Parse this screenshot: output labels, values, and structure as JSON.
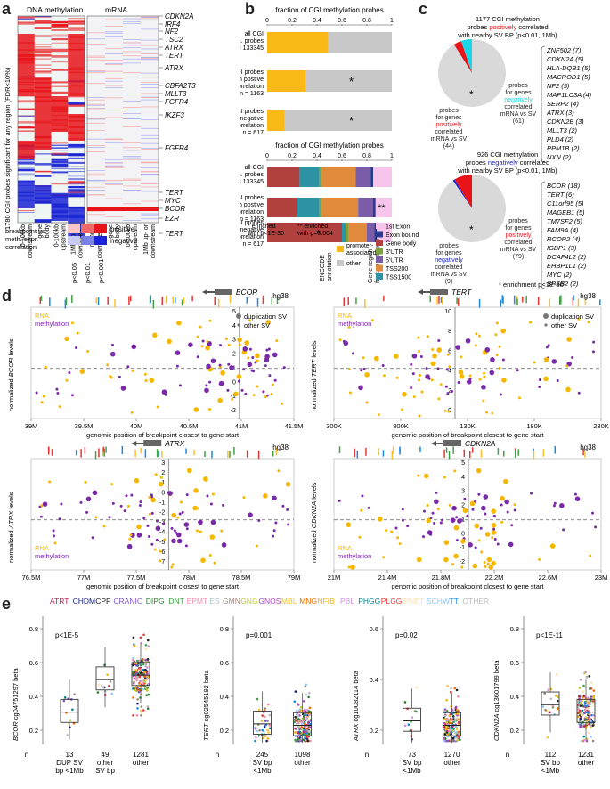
{
  "panels": {
    "a": {
      "label": "a",
      "ylabel": "1780 CGI probes significant for any region (FDR<10%)",
      "dna_title": "DNA methylation",
      "mrna_title": "mRNA",
      "col_labels": [
        "0-100kb downstream",
        "gene body",
        "0-100kb upstream",
        "1Mb up- or downstream"
      ],
      "genes": [
        "CDKN2A",
        "IRF4",
        "NF2",
        "TSC2",
        "ATRX",
        "TERT",
        "ATRX",
        "CBFA2T3",
        "MLLT3",
        "FGFR4",
        "IKZF3",
        "FGFR4",
        "TERT",
        "MYC",
        "BCOR",
        "EZR",
        "TERT"
      ],
      "legend_title": "breakpoint vs meth./expr. correlation",
      "legend_pos": "positive",
      "legend_neg": "negative",
      "legend_p": [
        "p<0.05",
        "p<0.01",
        "p<0.001"
      ],
      "colors": {
        "pos": "#e8141a",
        "neg": "#1a24d6",
        "pos_light": "#f4a0a0",
        "neg_light": "#a0a6ee"
      }
    },
    "b": {
      "label": "b",
      "top_title": "fraction of CGI methylation probes",
      "bottom_title": "fraction of CGI methylation probes",
      "ticks": [
        "0",
        "0.2",
        "0.4",
        "0.6",
        "0.8",
        "1"
      ],
      "rows": [
        {
          "l1": "all CGI",
          "l2": "meth. probes",
          "n": "n = 133345"
        },
        {
          "l1": "CGI probes",
          "l2": "with postive",
          "l3": "SV correlation",
          "n": "n = 1163"
        },
        {
          "l1": "CGI probes",
          "l2": "with negative",
          "l3": "SV correlation",
          "n": "n = 617"
        }
      ],
      "rows2": [
        {
          "l1": "all CGI",
          "l2": "meth. probes",
          "n": "n = 133345"
        },
        {
          "l1": "CGI probes",
          "l2": "with postive",
          "l3": "SV correlation",
          "n": "n = 1163"
        },
        {
          "l1": "CGI probes",
          "l2": "with negative",
          "l3": "SV correlation",
          "n": "n = 617"
        }
      ],
      "star1": "*",
      "star2": "**",
      "enriched1": "* enriched with p<1E-30",
      "enriched2": "** enriched with p=0.004",
      "encode_label": "ENCODE annotation",
      "encode_items": [
        "promoter-associated",
        "other"
      ],
      "generegion_label": "Gene region feature category",
      "gene_items": [
        "1st Exon",
        "Exon boundary",
        "Gene body",
        "3'UTR",
        "5'UTR",
        "TSS200",
        "TSS1500"
      ],
      "colors": {
        "promoter": "#fbb917",
        "other": "#c8c8c8",
        "exon1": "#f7c4ec",
        "exonb": "#2b3a8f",
        "body": "#b0413e",
        "utr3": "#7fa23a",
        "utr5": "#7b5ca8",
        "tss200": "#e08a3c",
        "tss1500": "#2f93a6"
      }
    },
    "c": {
      "label": "c",
      "top": {
        "t1": "1177 CGI methylation",
        "t2a": "probes ",
        "t2b": "positively",
        "t2c": " correlated",
        "t3": "with nearby SV BP (p<0.01, 1Mb)",
        "left": [
          "probes",
          "for genes",
          "positively",
          "correlated",
          "mRNA vs SV",
          "(44)"
        ],
        "right": [
          "probes",
          "for genes",
          "negatively",
          "correlated",
          "mRNA vs SV",
          "(61)"
        ],
        "genes": [
          "ZNF502 (7)",
          "CDKN2A (5)",
          "HLA-DQB1 (5)",
          "MACROD1 (5)",
          "NF2 (5)",
          "MAP1LC3A (4)",
          "SERP2 (4)",
          "ATRX (3)",
          "CDKN2B (3)",
          "MLLT3 (2)",
          "PLD4 (2)",
          "PPM1B (2)",
          "NXN (2)"
        ]
      },
      "bottom": {
        "t1": "926 CGI methylation",
        "t2a": "probes ",
        "t2b": "negatively",
        "t2c": " correlated",
        "t3": "with nearby SV BP (p<0.01, 1Mb)",
        "left": [
          "probes",
          "for genes",
          "negatively",
          "correlated",
          "mRNA vs SV",
          "(9)"
        ],
        "right": [
          "probes",
          "for genes",
          "positively",
          "correlated",
          "mRNA vs SV",
          "(79)"
        ],
        "genes": [
          "BCOR (18)",
          "TERT (6)",
          "C11orf95 (5)",
          "MAGEB1 (5)",
          "TM7SF2 (5)",
          "FAM9A (4)",
          "RCOR2 (4)",
          "IGBP1 (3)",
          "DCAF4L2 (2)",
          "EHBP1L1 (2)",
          "MYC (2)",
          "SPSB2 (2)"
        ]
      },
      "footnote": "* enrichment p<1E-30",
      "colors": {
        "red": "#e8141a",
        "cyan": "#19d7e6",
        "blue": "#1a24d6",
        "grey": "#d9d9d9"
      }
    },
    "d": {
      "label": "d",
      "xlabel": "genomic position of breakpoint closest to gene start",
      "build": "hg38",
      "rna": "RNA",
      "methylation": "methylation",
      "dup": "duplication SV",
      "other": "other SV",
      "plots": [
        {
          "gene": "BCOR",
          "ylabel": "normalized BCOR levels",
          "xticks": [
            "39M",
            "39.5M",
            "40M",
            "40.5M",
            "41M",
            "41.5M"
          ],
          "yticks": [
            "5",
            "4",
            "3",
            "2",
            "1",
            "0",
            "-1",
            "-2"
          ]
        },
        {
          "gene": "TERT",
          "ylabel": "normalized TERT levels",
          "xticks": [
            "300K",
            "800K",
            "130K",
            "180K",
            "230K"
          ],
          "yticks": [
            "10",
            "8",
            "6",
            "4",
            "2",
            "0"
          ]
        },
        {
          "gene": "ATRX",
          "ylabel": "normalized ATRX levels",
          "xticks": [
            "76.5M",
            "77M",
            "77.5M",
            "78M",
            "78.5M",
            "79M"
          ],
          "yticks": [
            "3",
            "2",
            "1",
            "0",
            "-1",
            "-2",
            "-3",
            "-4",
            "-5",
            "-6",
            "-7"
          ]
        },
        {
          "gene": "CDKN2A",
          "ylabel": "normalized CDKN2A levels",
          "xticks": [
            "21M",
            "21.4M",
            "21.8M",
            "22.2M",
            "22.6M",
            "23M"
          ],
          "yticks": [
            "5",
            "4",
            "3",
            "2",
            "1",
            "0",
            "-1",
            "-2"
          ]
        }
      ],
      "colors": {
        "rna": "#f5b800",
        "meth": "#7a2aa8"
      }
    },
    "e": {
      "label": "e",
      "types": [
        {
          "name": "ATRT",
          "color": "#c2185b"
        },
        {
          "name": "CHDM",
          "color": "#1a237e"
        },
        {
          "name": "CPP",
          "color": "#222222"
        },
        {
          "name": "CRANIO",
          "color": "#7e57c2"
        },
        {
          "name": "DIPG",
          "color": "#2e7d32"
        },
        {
          "name": "DNT",
          "color": "#43a047"
        },
        {
          "name": "EPMT",
          "color": "#f48fb1"
        },
        {
          "name": "ES",
          "color": "#b0bec5"
        },
        {
          "name": "GMN",
          "color": "#a1887f"
        },
        {
          "name": "GNG",
          "color": "#c0ca33"
        },
        {
          "name": "GNOS",
          "color": "#ab47bc"
        },
        {
          "name": "MBL",
          "color": "#fbc02d"
        },
        {
          "name": "MNG",
          "color": "#ef6c00"
        },
        {
          "name": "NFIB",
          "color": "#ffb300"
        },
        {
          "name": "PBL",
          "color": "#ce93d8"
        },
        {
          "name": "PHGG",
          "color": "#00838f"
        },
        {
          "name": "PLGG",
          "color": "#e53935"
        },
        {
          "name": "PNET",
          "color": "#ffe0b2"
        },
        {
          "name": "SCHW",
          "color": "#90caf9"
        },
        {
          "name": "TT",
          "color": "#1e88e5"
        },
        {
          "name": "OTHER",
          "color": "#bdbdbd"
        }
      ],
      "plots": [
        {
          "ylabel": "BCOR cg04751297 beta",
          "gene": "BCOR",
          "probe": " cg04751297 beta",
          "p": "p<1E-5",
          "yticks": [
            "0.8",
            "0.6",
            "0.4",
            "0.2"
          ],
          "groups": [
            {
              "n": "13",
              "l1": "DUP SV",
              "l2": "bp <1Mb"
            },
            {
              "n": "49",
              "l1": "other",
              "l2": "SV bp"
            },
            {
              "n": "1281",
              "l1": "other",
              "l2": ""
            }
          ]
        },
        {
          "ylabel": "TERT cg02545192 beta",
          "gene": "TERT",
          "probe": " cg02545192 beta",
          "p": "p=0.001",
          "yticks": [
            "0.8",
            "0.6",
            "0.4",
            "0.2"
          ],
          "groups": [
            {
              "n": "245",
              "l1": "SV bp",
              "l2": "<1Mb"
            },
            {
              "n": "1098",
              "l1": "other",
              "l2": ""
            }
          ]
        },
        {
          "ylabel": "ATRX cg10082114 beta",
          "gene": "ATRX",
          "probe": " cg10082114 beta",
          "p": "p=0.02",
          "yticks": [
            "0.6",
            "0.4",
            "0.2"
          ],
          "groups": [
            {
              "n": "73",
              "l1": "SV bp",
              "l2": "<1Mb"
            },
            {
              "n": "1270",
              "l1": "other",
              "l2": ""
            }
          ]
        },
        {
          "ylabel": "CDKN2A cg13601799 beta",
          "gene": "CDKN2A",
          "probe": " cg13601799 beta",
          "p": "p<1E-11",
          "yticks": [
            "0.8",
            "0.6",
            "0.4",
            "0.2"
          ],
          "groups": [
            {
              "n": "112",
              "l1": "SV bp",
              "l2": "<1Mb"
            },
            {
              "n": "1231",
              "l1": "other",
              "l2": ""
            }
          ]
        }
      ],
      "n_label": "n"
    }
  },
  "chart_data": [
    {
      "type": "bar",
      "panel": "b-top",
      "categories": [
        "all CGI meth. probes",
        "CGI probes with postive SV correlation",
        "CGI probes with negative SV correlation"
      ],
      "series": [
        {
          "name": "promoter-associated",
          "values": [
            0.49,
            0.31,
            0.14
          ]
        },
        {
          "name": "other",
          "values": [
            0.51,
            0.69,
            0.86
          ]
        }
      ],
      "xlim": [
        0,
        1
      ]
    },
    {
      "type": "bar",
      "panel": "b-bottom",
      "categories": [
        "all CGI meth. probes",
        "CGI probes with postive SV correlation",
        "CGI probes with negative SV correlation"
      ],
      "series": [
        {
          "name": "Gene body",
          "values": [
            0.26,
            0.24,
            0.6
          ]
        },
        {
          "name": "TSS1500",
          "values": [
            0.16,
            0.18,
            0.03
          ]
        },
        {
          "name": "3'UTR",
          "values": [
            0.02,
            0.02,
            0.02
          ]
        },
        {
          "name": "TSS200",
          "values": [
            0.27,
            0.29,
            0.15
          ]
        },
        {
          "name": "5'UTR",
          "values": [
            0.12,
            0.12,
            0.06
          ]
        },
        {
          "name": "Exon boundary",
          "values": [
            0.02,
            0.02,
            0.02
          ]
        },
        {
          "name": "1st Exon",
          "values": [
            0.15,
            0.13,
            0.12
          ]
        }
      ],
      "xlim": [
        0,
        1
      ]
    },
    {
      "type": "pie",
      "panel": "c-top",
      "categories": [
        "positively correlated mRNA vs SV",
        "negatively correlated mRNA vs SV",
        "other"
      ],
      "values": [
        44,
        61,
        1072
      ]
    },
    {
      "type": "pie",
      "panel": "c-bottom",
      "categories": [
        "negatively correlated mRNA vs SV",
        "positively correlated mRNA vs SV",
        "other"
      ],
      "values": [
        9,
        79,
        838
      ]
    },
    {
      "type": "box",
      "panel": "e",
      "series": [
        {
          "name": "BCOR cg04751297",
          "groups": [
            "DUP SV bp <1Mb",
            "other SV bp",
            "other"
          ],
          "median": [
            0.22,
            0.44,
            0.47
          ]
        },
        {
          "name": "TERT cg02545192",
          "groups": [
            "SV bp <1Mb",
            "other"
          ],
          "median": [
            0.14,
            0.13
          ]
        },
        {
          "name": "ATRX cg10082114",
          "groups": [
            "SV bp <1Mb",
            "other"
          ],
          "median": [
            0.16,
            0.13
          ]
        },
        {
          "name": "CDKN2A cg13601799",
          "groups": [
            "SV bp <1Mb",
            "other"
          ],
          "median": [
            0.27,
            0.22
          ]
        }
      ]
    }
  ]
}
